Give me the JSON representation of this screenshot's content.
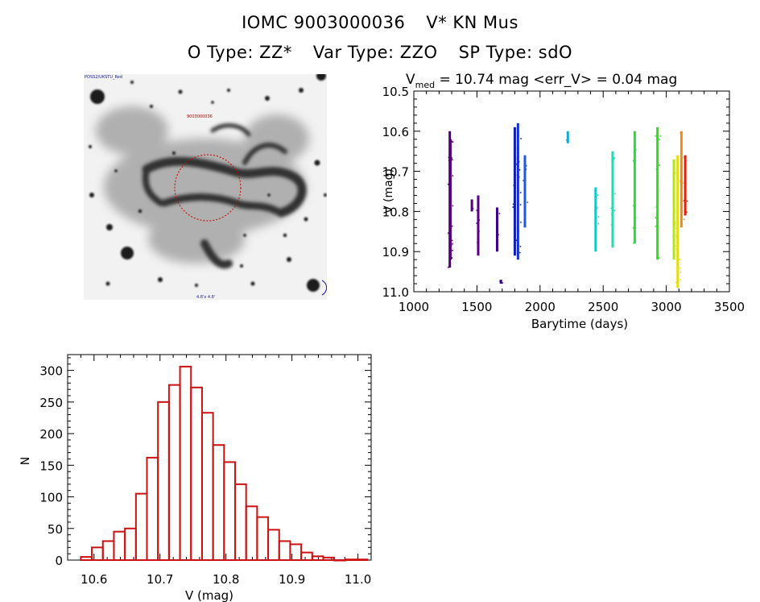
{
  "header": {
    "title_parts": [
      "IOMC 9003000036",
      "V* KN Mus"
    ],
    "subtitle_parts": [
      "O Type: ZZ*",
      "Var Type: ZZO",
      "SP Type: sdO"
    ]
  },
  "thumbnail": {
    "caption_top_left": "POSS2/UKSTU_Red",
    "caption_marker": "9003000036",
    "caption_bottom_center": "4.8'x 4.8'",
    "marker_color": "#cc0000",
    "caption_color": "#1a1aa8"
  },
  "chart_data": [
    {
      "type": "scatter",
      "title_main": "V",
      "title_sub": "med",
      "title_rest": " = 10.74 mag <err_V> = 0.04 mag",
      "xlabel": "Barytime (days)",
      "ylabel": "V (mag)",
      "xlim": [
        1000,
        3500
      ],
      "ylim": [
        11.0,
        10.5
      ],
      "y_inverted": true,
      "xticks": [
        1000,
        1500,
        2000,
        2500,
        3000,
        3500
      ],
      "yticks": [
        10.5,
        10.6,
        10.7,
        10.8,
        10.9,
        11.0
      ],
      "color_scale": "rainbow by time (purple to red)",
      "segments": [
        {
          "x": 1285,
          "y_min": 10.6,
          "y_max": 10.94,
          "color": "#4b0070"
        },
        {
          "x": 1290,
          "y_min": 10.62,
          "y_max": 10.92,
          "color": "#55007a"
        },
        {
          "x": 1460,
          "y_min": 10.77,
          "y_max": 10.8,
          "color": "#5a0082"
        },
        {
          "x": 1510,
          "y_min": 10.76,
          "y_max": 10.91,
          "color": "#5a0088"
        },
        {
          "x": 1660,
          "y_min": 10.79,
          "y_max": 10.9,
          "color": "#3c008c"
        },
        {
          "x": 1690,
          "y_min": 10.97,
          "y_max": 10.98,
          "color": "#3c008c"
        },
        {
          "x": 1800,
          "y_min": 10.59,
          "y_max": 10.91,
          "color": "#0f1eb4"
        },
        {
          "x": 1825,
          "y_min": 10.58,
          "y_max": 10.92,
          "color": "#1430c8"
        },
        {
          "x": 1880,
          "y_min": 10.66,
          "y_max": 10.84,
          "color": "#1e5adc"
        },
        {
          "x": 2220,
          "y_min": 10.6,
          "y_max": 10.63,
          "color": "#14aad2"
        },
        {
          "x": 2440,
          "y_min": 10.74,
          "y_max": 10.9,
          "color": "#14c8c8"
        },
        {
          "x": 2575,
          "y_min": 10.65,
          "y_max": 10.89,
          "color": "#1edcb4"
        },
        {
          "x": 2750,
          "y_min": 10.6,
          "y_max": 10.88,
          "color": "#28dc3c"
        },
        {
          "x": 2930,
          "y_min": 10.59,
          "y_max": 10.92,
          "color": "#32dc1e"
        },
        {
          "x": 3060,
          "y_min": 10.67,
          "y_max": 10.92,
          "color": "#b4e614"
        },
        {
          "x": 3090,
          "y_min": 10.66,
          "y_max": 10.99,
          "color": "#e6dc14"
        },
        {
          "x": 3120,
          "y_min": 10.6,
          "y_max": 10.84,
          "color": "#f08c14"
        },
        {
          "x": 3150,
          "y_min": 10.66,
          "y_max": 10.81,
          "color": "#e61e0a"
        }
      ]
    },
    {
      "type": "bar",
      "subtype": "histogram",
      "xlabel": "V (mag)",
      "ylabel": "N",
      "xlim": [
        10.56,
        11.02
      ],
      "ylim": [
        0,
        325
      ],
      "xticks": [
        10.6,
        10.7,
        10.8,
        10.9,
        11.0
      ],
      "xtick_labels": [
        "10.6",
        "10.7",
        "10.8",
        "10.9",
        "11.0"
      ],
      "yticks": [
        0,
        50,
        100,
        150,
        200,
        250,
        300
      ],
      "bin_width": 0.0167,
      "bin_start": 10.58,
      "values": [
        5,
        20,
        30,
        45,
        50,
        105,
        162,
        250,
        277,
        306,
        273,
        233,
        182,
        155,
        120,
        85,
        68,
        48,
        30,
        25,
        12,
        6,
        4,
        0,
        1,
        1
      ],
      "bar_color": "#cc1111"
    }
  ]
}
